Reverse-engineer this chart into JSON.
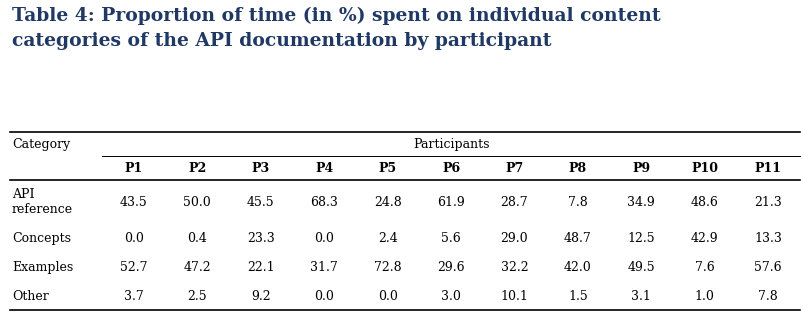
{
  "title_line1": "Table 4: Proportion of time (in %) spent on individual content",
  "title_line2": "categories of the API documentation by participant",
  "title_color": "#1F3864",
  "title_fontsize": 13.5,
  "col_header_group": "Participants",
  "col_header_cat": "Category",
  "participants": [
    "P1",
    "P2",
    "P3",
    "P4",
    "P5",
    "P6",
    "P7",
    "P8",
    "P9",
    "P10",
    "P11"
  ],
  "categories": [
    "API\nreference",
    "Concepts",
    "Examples",
    "Other"
  ],
  "data": [
    [
      43.5,
      50.0,
      45.5,
      68.3,
      24.8,
      61.9,
      28.7,
      7.8,
      34.9,
      48.6,
      21.3
    ],
    [
      0.0,
      0.4,
      23.3,
      0.0,
      2.4,
      5.6,
      29.0,
      48.7,
      12.5,
      42.9,
      13.3
    ],
    [
      52.7,
      47.2,
      22.1,
      31.7,
      72.8,
      29.6,
      32.2,
      42.0,
      49.5,
      7.6,
      57.6
    ],
    [
      3.7,
      2.5,
      9.2,
      0.0,
      0.0,
      3.0,
      10.1,
      1.5,
      3.1,
      1.0,
      7.8
    ]
  ],
  "line_color": "#000000",
  "background_color": "#ffffff",
  "cell_fontsize": 9.0,
  "header_fontsize": 9.0,
  "cat_not_bold": [
    "API\nreference",
    "Concepts",
    "Examples",
    "Other"
  ]
}
